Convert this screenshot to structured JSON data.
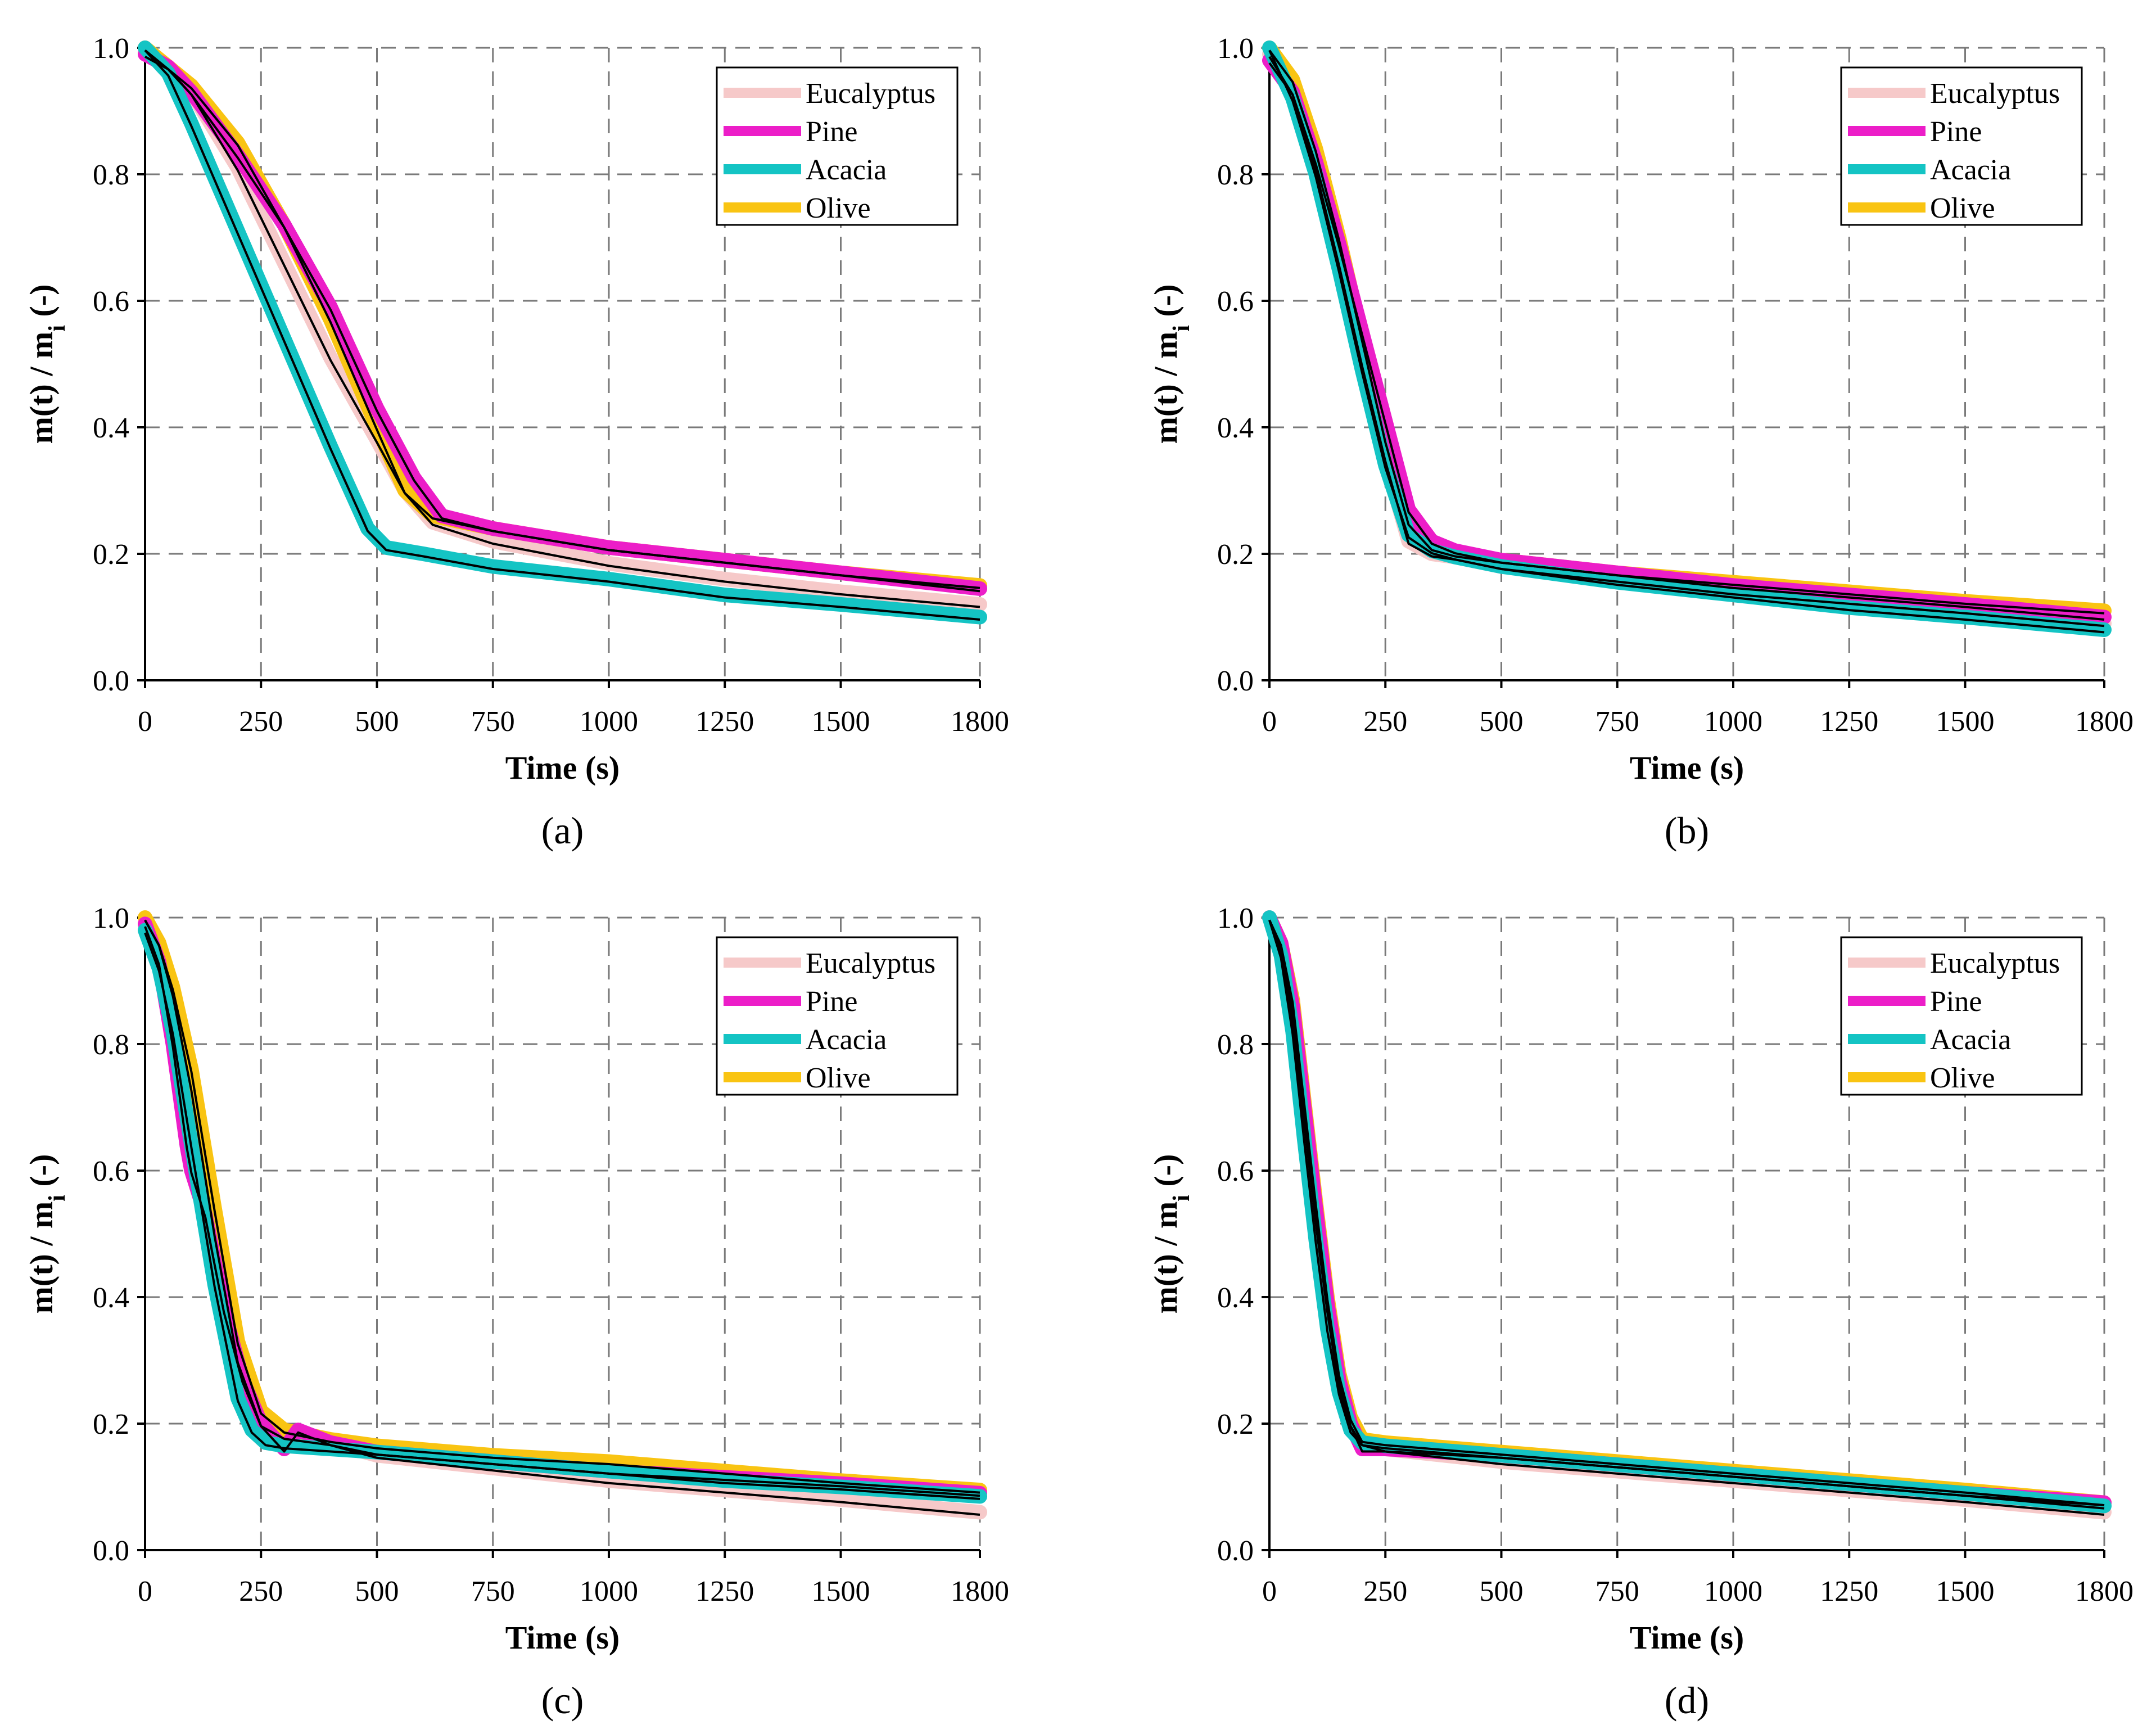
{
  "figure": {
    "panels": [
      "(a)",
      "(b)",
      "(c)",
      "(d)"
    ],
    "colors": {
      "Eucalyptus": "#f6c9c9",
      "Pine": "#ec1ec8",
      "Acacia": "#14c4c4",
      "Olive": "#f9c412",
      "model": "#000000"
    }
  },
  "chart_data": [
    {
      "type": "line",
      "panel_label": "(a)",
      "xlabel": "Time (s)",
      "ylabel": "m(t) / m_i (-)",
      "ylabel_main": "m(t) / m",
      "ylabel_sub": "i",
      "ylabel_tail": " (-)",
      "xlim": [
        0,
        1800
      ],
      "ylim": [
        0,
        1.0
      ],
      "xticks": [
        "0",
        "250",
        "500",
        "750",
        "1000",
        "1250",
        "1500",
        "1800"
      ],
      "yticks": [
        "0.0",
        "0.2",
        "0.4",
        "0.6",
        "0.8",
        "1.0"
      ],
      "grid": true,
      "legend": [
        "Eucalyptus",
        "Pine",
        "Acacia",
        "Olive"
      ],
      "legend_position": "top-right",
      "series": [
        {
          "name": "Eucalyptus",
          "x": [
            0,
            50,
            100,
            200,
            300,
            400,
            500,
            560,
            620,
            750,
            1000,
            1250,
            1500,
            1800
          ],
          "y": [
            1.0,
            0.97,
            0.93,
            0.81,
            0.66,
            0.51,
            0.38,
            0.3,
            0.25,
            0.22,
            0.185,
            0.16,
            0.14,
            0.12
          ]
        },
        {
          "name": "Pine",
          "x": [
            0,
            50,
            100,
            200,
            300,
            400,
            500,
            580,
            640,
            750,
            1000,
            1250,
            1500,
            1800
          ],
          "y": [
            0.99,
            0.97,
            0.93,
            0.83,
            0.72,
            0.59,
            0.43,
            0.32,
            0.26,
            0.24,
            0.21,
            0.19,
            0.17,
            0.145
          ]
        },
        {
          "name": "Acacia",
          "x": [
            0,
            50,
            100,
            200,
            300,
            400,
            480,
            520,
            600,
            750,
            1000,
            1250,
            1500,
            1800
          ],
          "y": [
            1.0,
            0.96,
            0.88,
            0.71,
            0.54,
            0.37,
            0.24,
            0.21,
            0.2,
            0.18,
            0.16,
            0.135,
            0.12,
            0.1
          ]
        },
        {
          "name": "Olive",
          "x": [
            0,
            50,
            100,
            200,
            300,
            400,
            500,
            560,
            620,
            750,
            1000,
            1250,
            1500,
            1800
          ],
          "y": [
            1.0,
            0.97,
            0.94,
            0.85,
            0.72,
            0.57,
            0.4,
            0.3,
            0.26,
            0.24,
            0.21,
            0.19,
            0.17,
            0.15
          ]
        }
      ]
    },
    {
      "type": "line",
      "panel_label": "(b)",
      "xlabel": "Time (s)",
      "ylabel": "m(t) / m_i (-)",
      "ylabel_main": "m(t) / m",
      "ylabel_sub": "i",
      "ylabel_tail": " (-)",
      "xlim": [
        0,
        1800
      ],
      "ylim": [
        0,
        1.0
      ],
      "xticks": [
        "0",
        "250",
        "500",
        "750",
        "1000",
        "1250",
        "1500",
        "1800"
      ],
      "yticks": [
        "0.0",
        "0.2",
        "0.4",
        "0.6",
        "0.8",
        "1.0"
      ],
      "grid": true,
      "legend": [
        "Eucalyptus",
        "Pine",
        "Acacia",
        "Olive"
      ],
      "legend_position": "top-right",
      "series": [
        {
          "name": "Eucalyptus",
          "x": [
            0,
            50,
            100,
            150,
            200,
            250,
            300,
            350,
            400,
            500,
            750,
            1000,
            1250,
            1500,
            1800
          ],
          "y": [
            0.99,
            0.93,
            0.81,
            0.66,
            0.5,
            0.35,
            0.22,
            0.2,
            0.195,
            0.18,
            0.16,
            0.14,
            0.125,
            0.11,
            0.09
          ]
        },
        {
          "name": "Pine",
          "x": [
            0,
            50,
            100,
            150,
            200,
            250,
            300,
            350,
            400,
            500,
            750,
            1000,
            1250,
            1500,
            1800
          ],
          "y": [
            0.98,
            0.93,
            0.82,
            0.69,
            0.55,
            0.41,
            0.27,
            0.22,
            0.205,
            0.19,
            0.17,
            0.15,
            0.135,
            0.12,
            0.1
          ]
        },
        {
          "name": "Acacia",
          "x": [
            0,
            50,
            100,
            150,
            200,
            250,
            300,
            350,
            400,
            500,
            750,
            1000,
            1250,
            1500,
            1800
          ],
          "y": [
            1.0,
            0.92,
            0.8,
            0.65,
            0.49,
            0.34,
            0.23,
            0.205,
            0.195,
            0.18,
            0.155,
            0.135,
            0.115,
            0.1,
            0.08
          ]
        },
        {
          "name": "Olive",
          "x": [
            0,
            50,
            100,
            150,
            200,
            250,
            300,
            350,
            400,
            500,
            750,
            1000,
            1250,
            1500,
            1800
          ],
          "y": [
            1.0,
            0.95,
            0.84,
            0.7,
            0.54,
            0.38,
            0.25,
            0.21,
            0.2,
            0.19,
            0.17,
            0.155,
            0.14,
            0.125,
            0.11
          ]
        }
      ]
    },
    {
      "type": "line",
      "panel_label": "(c)",
      "xlabel": "Time (s)",
      "ylabel": "m(t) / m_i (-)",
      "ylabel_main": "m(t) / m",
      "ylabel_sub": "i",
      "ylabel_tail": " (-)",
      "xlim": [
        0,
        1800
      ],
      "ylim": [
        0,
        1.0
      ],
      "xticks": [
        "0",
        "250",
        "500",
        "750",
        "1000",
        "1250",
        "1500",
        "1800"
      ],
      "yticks": [
        "0.0",
        "0.2",
        "0.4",
        "0.6",
        "0.8",
        "1.0"
      ],
      "grid": true,
      "legend": [
        "Eucalyptus",
        "Pine",
        "Acacia",
        "Olive"
      ],
      "legend_position": "top-right",
      "series": [
        {
          "name": "Eucalyptus",
          "x": [
            0,
            30,
            60,
            100,
            150,
            200,
            250,
            300,
            400,
            500,
            750,
            1000,
            1250,
            1500,
            1800
          ],
          "y": [
            1.0,
            0.96,
            0.88,
            0.73,
            0.5,
            0.3,
            0.2,
            0.18,
            0.17,
            0.15,
            0.13,
            0.11,
            0.095,
            0.08,
            0.06
          ]
        },
        {
          "name": "Pine",
          "x": [
            0,
            30,
            60,
            90,
            100,
            130,
            170,
            210,
            250,
            300,
            330,
            400,
            500,
            750,
            1000,
            1250,
            1500,
            1800
          ],
          "y": [
            0.99,
            0.93,
            0.8,
            0.64,
            0.6,
            0.53,
            0.38,
            0.27,
            0.2,
            0.16,
            0.19,
            0.17,
            0.155,
            0.14,
            0.125,
            0.115,
            0.105,
            0.09
          ]
        },
        {
          "name": "Acacia",
          "x": [
            0,
            30,
            60,
            100,
            150,
            200,
            230,
            260,
            300,
            400,
            500,
            750,
            1000,
            1250,
            1500,
            1800
          ],
          "y": [
            0.98,
            0.92,
            0.82,
            0.64,
            0.42,
            0.24,
            0.19,
            0.17,
            0.165,
            0.16,
            0.155,
            0.14,
            0.125,
            0.11,
            0.1,
            0.085
          ]
        },
        {
          "name": "Olive",
          "x": [
            0,
            30,
            60,
            100,
            150,
            200,
            250,
            300,
            400,
            500,
            750,
            1000,
            1250,
            1500,
            1800
          ],
          "y": [
            1.0,
            0.96,
            0.89,
            0.76,
            0.54,
            0.33,
            0.22,
            0.19,
            0.175,
            0.165,
            0.15,
            0.14,
            0.125,
            0.11,
            0.095
          ]
        }
      ]
    },
    {
      "type": "line",
      "panel_label": "(d)",
      "xlabel": "Time (s)",
      "ylabel": "m(t) / m_i (-)",
      "ylabel_main": "m(t) / m",
      "ylabel_sub": "i",
      "ylabel_tail": " (-)",
      "xlim": [
        0,
        1800
      ],
      "ylim": [
        0,
        1.0
      ],
      "xticks": [
        "0",
        "250",
        "500",
        "750",
        "1000",
        "1250",
        "1500",
        "1800"
      ],
      "yticks": [
        "0.0",
        "0.2",
        "0.4",
        "0.6",
        "0.8",
        "1.0"
      ],
      "grid": true,
      "legend": [
        "Eucalyptus",
        "Pine",
        "Acacia",
        "Olive"
      ],
      "legend_position": "top-right",
      "series": [
        {
          "name": "Eucalyptus",
          "x": [
            0,
            25,
            50,
            75,
            100,
            125,
            150,
            175,
            200,
            250,
            500,
            750,
            1000,
            1250,
            1500,
            1800
          ],
          "y": [
            1.0,
            0.95,
            0.84,
            0.68,
            0.52,
            0.38,
            0.26,
            0.2,
            0.17,
            0.16,
            0.14,
            0.125,
            0.11,
            0.095,
            0.08,
            0.06
          ]
        },
        {
          "name": "Pine",
          "x": [
            0,
            25,
            50,
            75,
            100,
            125,
            150,
            175,
            200,
            250,
            500,
            750,
            1000,
            1250,
            1500,
            1800
          ],
          "y": [
            1.0,
            0.96,
            0.86,
            0.7,
            0.54,
            0.39,
            0.27,
            0.2,
            0.16,
            0.16,
            0.15,
            0.135,
            0.12,
            0.105,
            0.09,
            0.075
          ]
        },
        {
          "name": "Acacia",
          "x": [
            0,
            25,
            50,
            75,
            100,
            125,
            150,
            175,
            200,
            250,
            500,
            750,
            1000,
            1250,
            1500,
            1800
          ],
          "y": [
            1.0,
            0.94,
            0.82,
            0.65,
            0.49,
            0.35,
            0.25,
            0.19,
            0.17,
            0.165,
            0.15,
            0.135,
            0.12,
            0.105,
            0.09,
            0.07
          ]
        },
        {
          "name": "Olive",
          "x": [
            0,
            25,
            50,
            75,
            100,
            125,
            150,
            175,
            200,
            250,
            500,
            750,
            1000,
            1250,
            1500,
            1800
          ],
          "y": [
            1.0,
            0.96,
            0.87,
            0.71,
            0.55,
            0.4,
            0.28,
            0.21,
            0.175,
            0.17,
            0.155,
            0.14,
            0.125,
            0.11,
            0.095,
            0.075
          ]
        }
      ]
    }
  ]
}
